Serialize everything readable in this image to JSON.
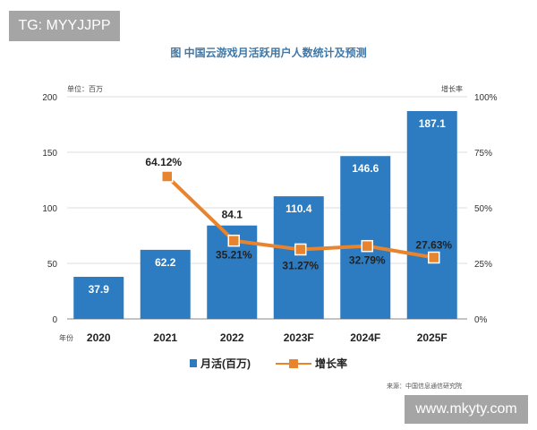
{
  "watermarks": {
    "top_left": "TG: MYYJJPP",
    "bottom_right": "www.mkyty.com"
  },
  "chart_data": {
    "type": "bar+line",
    "title": "图  中国云游戏月活跃用户人数统计及预测",
    "y_left_label": "单位：百万",
    "y_right_label": "增长率",
    "x_label": "年份",
    "categories": [
      "2020",
      "2021",
      "2022",
      "2023F",
      "2024F",
      "2025F"
    ],
    "y_left_ticks": [
      "0",
      "50",
      "100",
      "150",
      "200"
    ],
    "y_right_ticks": [
      "0%",
      "25%",
      "50%",
      "75%",
      "100%"
    ],
    "ylim_left": [
      0,
      200
    ],
    "ylim_right": [
      0,
      100
    ],
    "grid": true,
    "legend_position": "bottom",
    "series": [
      {
        "name": "月活(百万)",
        "type": "bar",
        "color": "#2d7cc1",
        "values": [
          37.9,
          62.2,
          84.1,
          110.4,
          146.6,
          187.1
        ],
        "labels": [
          "37.9",
          "62.2",
          "84.1",
          "110.4",
          "146.6",
          "187.1"
        ]
      },
      {
        "name": "增长率",
        "type": "line",
        "color": "#e8832e",
        "values": [
          null,
          64.12,
          35.21,
          31.27,
          32.79,
          27.63
        ],
        "labels": [
          "",
          "64.12%",
          "35.21%",
          "31.27%",
          "32.79%",
          "27.63%"
        ]
      }
    ],
    "source": "来源：中国信息通信研究院"
  }
}
